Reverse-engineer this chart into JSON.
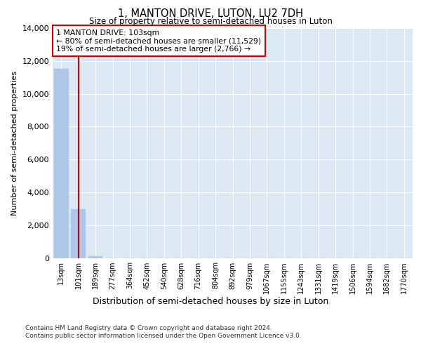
{
  "title": "1, MANTON DRIVE, LUTON, LU2 7DH",
  "subtitle": "Size of property relative to semi-detached houses in Luton",
  "xlabel": "Distribution of semi-detached houses by size in Luton",
  "ylabel": "Number of semi-detached properties",
  "categories": [
    "13sqm",
    "101sqm",
    "189sqm",
    "277sqm",
    "364sqm",
    "452sqm",
    "540sqm",
    "628sqm",
    "716sqm",
    "804sqm",
    "892sqm",
    "979sqm",
    "1067sqm",
    "1155sqm",
    "1243sqm",
    "1331sqm",
    "1419sqm",
    "1506sqm",
    "1594sqm",
    "1682sqm",
    "1770sqm"
  ],
  "values": [
    11529,
    2950,
    120,
    0,
    0,
    0,
    0,
    0,
    0,
    0,
    0,
    0,
    0,
    0,
    0,
    0,
    0,
    0,
    0,
    0,
    0
  ],
  "bar_color": "#aec6e8",
  "vline_x": 1.0,
  "vline_color": "#cc0000",
  "annotation_text": "1 MANTON DRIVE: 103sqm\n← 80% of semi-detached houses are smaller (11,529)\n19% of semi-detached houses are larger (2,766) →",
  "annotation_box_color": "#cc0000",
  "ylim": [
    0,
    14000
  ],
  "yticks": [
    0,
    2000,
    4000,
    6000,
    8000,
    10000,
    12000,
    14000
  ],
  "background_color": "#dce9f5",
  "grid_color": "#ffffff",
  "footer_line1": "Contains HM Land Registry data © Crown copyright and database right 2024.",
  "footer_line2": "Contains public sector information licensed under the Open Government Licence v3.0."
}
